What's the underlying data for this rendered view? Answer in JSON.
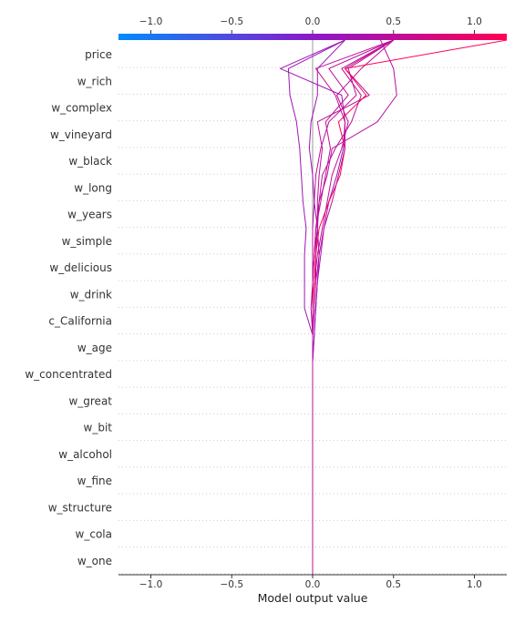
{
  "chart_data": {
    "type": "decision",
    "xlabel": "Model output value",
    "xlim": [
      -1.2,
      1.2
    ],
    "x_ticks": [
      -1.0,
      -0.5,
      0.0,
      0.5,
      1.0
    ],
    "x_tick_labels": [
      "−1.0",
      "−0.5",
      "0.0",
      "0.5",
      "1.0"
    ],
    "base_value": 0.0,
    "grid": "dotted horizontal",
    "colormap": [
      "#008bfb",
      "#8c19ca",
      "#ff0052"
    ],
    "features_top_to_bottom": [
      "price",
      "w_rich",
      "w_complex",
      "w_vineyard",
      "w_black",
      "w_long",
      "w_years",
      "w_simple",
      "w_delicious",
      "w_drink",
      "c_California",
      "w_age",
      "w_concentrated",
      "w_great",
      "w_bit",
      "w_alcohol",
      "w_fine",
      "w_structure",
      "w_cola",
      "w_one"
    ],
    "series": [
      {
        "values": [
          0.0,
          0.0,
          0.0,
          0.0,
          0.0,
          0.0,
          0.0,
          0.0,
          0.0,
          0.01,
          0.02,
          0.03,
          0.05,
          0.07,
          0.1,
          0.15,
          0.19,
          0.2,
          0.18,
          -0.2,
          0.2
        ]
      },
      {
        "values": [
          0.0,
          0.0,
          0.0,
          0.0,
          0.0,
          0.0,
          0.0,
          0.0,
          0.0,
          0.0,
          -0.05,
          -0.05,
          -0.05,
          -0.04,
          -0.06,
          -0.07,
          -0.08,
          -0.1,
          -0.14,
          -0.15,
          0.2
        ]
      },
      {
        "values": [
          0.0,
          0.0,
          0.0,
          0.0,
          0.0,
          0.0,
          0.0,
          0.0,
          0.0,
          0.0,
          -0.01,
          0.0,
          0.0,
          0.0,
          0.01,
          0.02,
          0.05,
          0.1,
          0.27,
          0.22,
          0.5
        ]
      },
      {
        "values": [
          0.0,
          0.0,
          0.0,
          0.0,
          0.0,
          0.0,
          0.0,
          0.0,
          0.0,
          0.0,
          0.01,
          0.02,
          0.02,
          0.03,
          0.03,
          0.04,
          0.06,
          0.03,
          0.35,
          0.2,
          0.5
        ]
      },
      {
        "values": [
          0.0,
          0.0,
          0.0,
          0.0,
          0.0,
          0.0,
          0.0,
          0.0,
          0.0,
          0.01,
          0.02,
          0.03,
          0.04,
          0.03,
          0.01,
          0.0,
          -0.02,
          -0.01,
          0.03,
          0.03,
          0.2
        ]
      },
      {
        "values": [
          0.0,
          0.0,
          0.0,
          0.0,
          0.0,
          0.0,
          0.0,
          0.0,
          0.0,
          0.0,
          0.0,
          0.01,
          0.03,
          0.06,
          0.09,
          0.12,
          0.18,
          0.22,
          0.15,
          0.3,
          0.5
        ]
      },
      {
        "values": [
          0.0,
          0.0,
          0.0,
          0.0,
          0.0,
          0.0,
          0.0,
          0.0,
          0.0,
          0.0,
          0.0,
          0.01,
          0.02,
          0.04,
          0.1,
          0.17,
          0.2,
          0.16,
          0.33,
          0.2,
          1.2
        ]
      },
      {
        "values": [
          0.0,
          0.0,
          0.0,
          0.0,
          0.0,
          0.0,
          0.0,
          0.0,
          0.0,
          0.0,
          0.01,
          0.02,
          0.04,
          0.07,
          0.12,
          0.16,
          0.2,
          0.2,
          0.14,
          0.02,
          0.5
        ]
      },
      {
        "values": [
          0.0,
          0.0,
          0.0,
          0.0,
          0.0,
          0.0,
          0.0,
          0.0,
          0.0,
          0.0,
          0.0,
          0.0,
          0.01,
          0.02,
          0.04,
          0.06,
          0.14,
          0.24,
          0.3,
          0.18,
          0.5
        ]
      },
      {
        "values": [
          0.0,
          0.0,
          0.0,
          0.0,
          0.0,
          0.0,
          0.0,
          0.0,
          0.0,
          0.0,
          0.0,
          0.0,
          0.01,
          0.03,
          0.04,
          0.09,
          0.12,
          0.4,
          0.52,
          0.5,
          0.42
        ]
      },
      {
        "values": [
          0.0,
          0.0,
          0.0,
          0.0,
          0.0,
          0.0,
          0.0,
          0.0,
          0.0,
          0.0,
          0.0,
          0.0,
          0.01,
          0.02,
          0.05,
          0.08,
          0.11,
          0.08,
          0.22,
          0.1,
          0.5
        ]
      }
    ]
  }
}
